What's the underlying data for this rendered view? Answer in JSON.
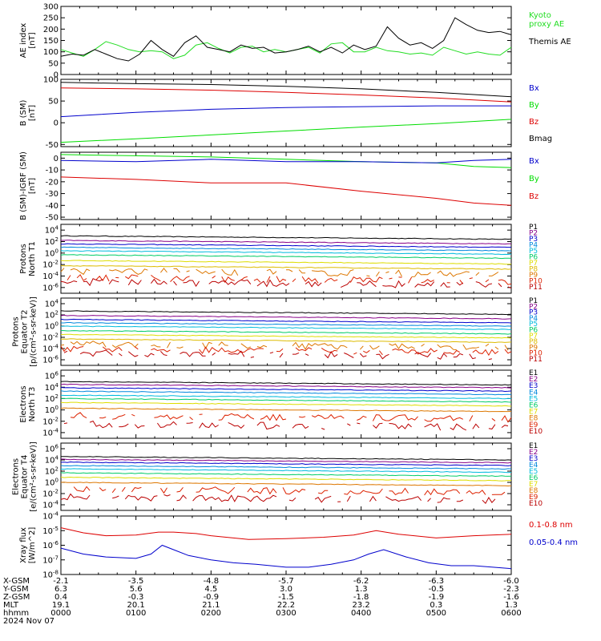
{
  "colors": {
    "black": "#000000",
    "red": "#dd0000",
    "green": "#00dd00",
    "blue": "#0000cc",
    "ae_kyoto": "#22dd22"
  },
  "chart_data": [
    {
      "type": "line",
      "panel": "AE index",
      "ylabel_lines": [
        "AE index",
        "[nT]"
      ],
      "yticks": [
        "300",
        "250",
        "200",
        "150",
        "100",
        "50",
        "0"
      ],
      "ylim": [
        0,
        300
      ],
      "legend": [
        {
          "name": "Kyoto\nproxy AE",
          "lines": [
            "Kyoto",
            "proxy AE"
          ],
          "color": "#22dd22"
        },
        {
          "name": "Themis AE",
          "lines": [
            "Themis AE"
          ],
          "color": "#000000"
        }
      ],
      "series": [
        {
          "name": "Kyoto proxy AE",
          "color": "#22dd22",
          "x": [
            0,
            0.15,
            0.3,
            0.45,
            0.6,
            0.75,
            0.9,
            1.05,
            1.2,
            1.35,
            1.5,
            1.65,
            1.8,
            1.95,
            2.1,
            2.25,
            2.4,
            2.55,
            2.7,
            2.85,
            3.0,
            3.15,
            3.3,
            3.45,
            3.6,
            3.75,
            3.9,
            4.05,
            4.2,
            4.35,
            4.5,
            4.65,
            4.8,
            4.95,
            5.1,
            5.25,
            5.4,
            5.55,
            5.7,
            5.85,
            6.0
          ],
          "y": [
            110,
            95,
            80,
            110,
            145,
            130,
            110,
            100,
            105,
            100,
            70,
            85,
            130,
            140,
            115,
            95,
            120,
            125,
            100,
            110,
            100,
            110,
            120,
            95,
            135,
            140,
            100,
            100,
            120,
            105,
            100,
            90,
            95,
            85,
            120,
            105,
            90,
            100,
            90,
            85,
            120
          ]
        },
        {
          "name": "Themis AE",
          "color": "#000000",
          "x": [
            0,
            0.15,
            0.3,
            0.45,
            0.6,
            0.75,
            0.9,
            1.05,
            1.2,
            1.35,
            1.5,
            1.65,
            1.8,
            1.95,
            2.1,
            2.25,
            2.4,
            2.55,
            2.7,
            2.85,
            3.0,
            3.15,
            3.3,
            3.45,
            3.6,
            3.75,
            3.9,
            4.05,
            4.2,
            4.35,
            4.5,
            4.65,
            4.8,
            4.95,
            5.1,
            5.25,
            5.4,
            5.55,
            5.7,
            5.85,
            6.0
          ],
          "y": [
            80,
            90,
            85,
            110,
            90,
            70,
            60,
            90,
            150,
            110,
            80,
            140,
            170,
            120,
            110,
            100,
            130,
            115,
            120,
            95,
            100,
            110,
            125,
            100,
            120,
            95,
            130,
            110,
            125,
            210,
            160,
            130,
            140,
            115,
            150,
            250,
            220,
            195,
            185,
            190,
            175
          ]
        }
      ]
    },
    {
      "type": "line",
      "panel": "B (SM)",
      "ylabel_lines": [
        "B (SM)",
        "[nT]"
      ],
      "yticks": [
        "100",
        "50",
        "0",
        "-50"
      ],
      "ylim": [
        -55,
        100
      ],
      "legend": [
        {
          "name": "Bx",
          "lines": [
            "Bx"
          ],
          "color": "#0000cc"
        },
        {
          "name": "By",
          "lines": [
            "By"
          ],
          "color": "#00dd00"
        },
        {
          "name": "Bz",
          "lines": [
            "Bz"
          ],
          "color": "#dd0000"
        },
        {
          "name": "Bmag",
          "lines": [
            "Bmag"
          ],
          "color": "#000000"
        }
      ],
      "series": [
        {
          "name": "Bmag",
          "color": "#000000",
          "x": [
            0,
            1,
            2,
            3,
            4,
            5,
            6
          ],
          "y": [
            93,
            90,
            88,
            84,
            78,
            70,
            60
          ]
        },
        {
          "name": "Bz",
          "color": "#dd0000",
          "x": [
            0,
            1,
            2,
            3,
            4,
            5,
            6
          ],
          "y": [
            80,
            78,
            75,
            70,
            64,
            57,
            48
          ]
        },
        {
          "name": "Bx",
          "color": "#0000cc",
          "x": [
            0,
            1,
            2,
            3,
            4,
            5,
            6
          ],
          "y": [
            14,
            24,
            31,
            35,
            37,
            39,
            39
          ]
        },
        {
          "name": "By",
          "color": "#00dd00",
          "x": [
            0,
            1,
            2,
            3,
            4,
            5,
            6
          ],
          "y": [
            -45,
            -37,
            -28,
            -19,
            -10,
            -2,
            8
          ]
        }
      ]
    },
    {
      "type": "line",
      "panel": "B (SM)-IGRF (SM)",
      "ylabel_lines": [
        "B (SM)-IGRF (SM)",
        "[nT]"
      ],
      "yticks": [
        "0",
        "-10",
        "-20",
        "-30",
        "-40",
        "-50"
      ],
      "ylim": [
        -52,
        5
      ],
      "legend": [
        {
          "name": "Bx",
          "lines": [
            "Bx"
          ],
          "color": "#0000cc"
        },
        {
          "name": "By",
          "lines": [
            "By"
          ],
          "color": "#00dd00"
        },
        {
          "name": "Bz",
          "lines": [
            "Bz"
          ],
          "color": "#dd0000"
        }
      ],
      "series": [
        {
          "name": "By",
          "color": "#00dd00",
          "x": [
            0,
            1,
            2,
            3,
            4,
            5,
            5.5,
            6
          ],
          "y": [
            3,
            2,
            1,
            -1,
            -3,
            -4,
            -7,
            -8
          ]
        },
        {
          "name": "Bx",
          "color": "#0000cc",
          "x": [
            0,
            1,
            2,
            3,
            4,
            5,
            5.5,
            6
          ],
          "y": [
            -2,
            -3,
            -1,
            -3,
            -3,
            -4,
            -2,
            -1
          ]
        },
        {
          "name": "Bz",
          "color": "#dd0000",
          "x": [
            0,
            1,
            2,
            3,
            4,
            5,
            5.5,
            6
          ],
          "y": [
            -16,
            -18,
            -21,
            -21,
            -28,
            -34,
            -38,
            -40
          ]
        }
      ]
    },
    {
      "type": "line",
      "panel": "Protons North T1",
      "ylabel_lines": [
        "Protons",
        "North T1"
      ],
      "log": true,
      "ytick_exps": [
        "4",
        "2",
        "0",
        "-2",
        "-4",
        "-6"
      ],
      "ylim_exp": [
        -7,
        5
      ],
      "legend": [
        {
          "name": "P1",
          "lines": [
            "P1"
          ],
          "color": "#000000"
        },
        {
          "name": "P2",
          "lines": [
            "P2"
          ],
          "color": "#880088"
        },
        {
          "name": "P3",
          "lines": [
            "P3"
          ],
          "color": "#0000cc"
        },
        {
          "name": "P4",
          "lines": [
            "P4"
          ],
          "color": "#0088dd"
        },
        {
          "name": "P5",
          "lines": [
            "P5"
          ],
          "color": "#00bbdd"
        },
        {
          "name": "P6",
          "lines": [
            "P6"
          ],
          "color": "#00cc66"
        },
        {
          "name": "P7",
          "lines": [
            "P7"
          ],
          "color": "#dddd00"
        },
        {
          "name": "P8",
          "lines": [
            "P8"
          ],
          "color": "#ddbb00"
        },
        {
          "name": "P9",
          "lines": [
            "P9"
          ],
          "color": "#dd7700"
        },
        {
          "name": "P10",
          "lines": [
            "P10"
          ],
          "color": "#dd2200"
        },
        {
          "name": "P11",
          "lines": [
            "P11"
          ],
          "color": "#bb0000"
        }
      ],
      "series_log10": [
        3.0,
        2.2,
        1.6,
        1.0,
        0.4,
        -0.3,
        -1.3,
        -2.2,
        -3.1,
        -4.3,
        -5.0
      ]
    },
    {
      "type": "line",
      "panel": "Protons Equator T2",
      "ylabel_lines": [
        "Protons",
        "Equator T2",
        "[p/(cm²-s-sr-keV)]"
      ],
      "log": true,
      "ytick_exps": [
        "4",
        "2",
        "0",
        "-2",
        "-4",
        "-6"
      ],
      "ylim_exp": [
        -7,
        5
      ],
      "legend": [
        {
          "name": "P1",
          "lines": [
            "P1"
          ],
          "color": "#000000"
        },
        {
          "name": "P2",
          "lines": [
            "P2"
          ],
          "color": "#880088"
        },
        {
          "name": "P3",
          "lines": [
            "P3"
          ],
          "color": "#0000cc"
        },
        {
          "name": "P4",
          "lines": [
            "P4"
          ],
          "color": "#0088dd"
        },
        {
          "name": "P5",
          "lines": [
            "P5"
          ],
          "color": "#00bbdd"
        },
        {
          "name": "P6",
          "lines": [
            "P6"
          ],
          "color": "#00cc66"
        },
        {
          "name": "P7",
          "lines": [
            "P7"
          ],
          "color": "#dddd00"
        },
        {
          "name": "P8",
          "lines": [
            "P8"
          ],
          "color": "#ddbb00"
        },
        {
          "name": "P9",
          "lines": [
            "P9"
          ],
          "color": "#dd7700"
        },
        {
          "name": "P10",
          "lines": [
            "P10"
          ],
          "color": "#dd2200"
        },
        {
          "name": "P11",
          "lines": [
            "P11"
          ],
          "color": "#bb0000"
        }
      ],
      "series_log10": [
        2.7,
        1.9,
        1.2,
        0.6,
        0.0,
        -0.8,
        -1.5,
        -2.3,
        -3.2,
        -4.1,
        -4.8
      ]
    },
    {
      "type": "line",
      "panel": "Electrons North T3",
      "ylabel_lines": [
        "Electrons",
        "North T3"
      ],
      "log": true,
      "ytick_exps": [
        "6",
        "4",
        "2",
        "0",
        "-2",
        "-4"
      ],
      "ylim_exp": [
        -5,
        7
      ],
      "legend": [
        {
          "name": "E1",
          "lines": [
            "E1"
          ],
          "color": "#000000"
        },
        {
          "name": "E2",
          "lines": [
            "E2"
          ],
          "color": "#880088"
        },
        {
          "name": "E3",
          "lines": [
            "E3"
          ],
          "color": "#0000cc"
        },
        {
          "name": "E4",
          "lines": [
            "E4"
          ],
          "color": "#0088dd"
        },
        {
          "name": "E5",
          "lines": [
            "E5"
          ],
          "color": "#00bbdd"
        },
        {
          "name": "E6",
          "lines": [
            "E6"
          ],
          "color": "#00cc66"
        },
        {
          "name": "E7",
          "lines": [
            "E7"
          ],
          "color": "#dddd00"
        },
        {
          "name": "E8",
          "lines": [
            "E8"
          ],
          "color": "#dd7700"
        },
        {
          "name": "E9",
          "lines": [
            "E9"
          ],
          "color": "#dd2200"
        },
        {
          "name": "E10",
          "lines": [
            "E10"
          ],
          "color": "#bb0000"
        }
      ],
      "series_log10": [
        5.0,
        4.5,
        3.9,
        3.3,
        2.6,
        2.0,
        1.3,
        0.3,
        -1.0,
        -2.5
      ]
    },
    {
      "type": "line",
      "panel": "Electrons Equator T4",
      "ylabel_lines": [
        "Electrons",
        "Equator T4",
        "[e/(cm²-s-sr-keV)]"
      ],
      "log": true,
      "ytick_exps": [
        "6",
        "4",
        "2",
        "0",
        "-2",
        "-4"
      ],
      "ylim_exp": [
        -5,
        7
      ],
      "legend": [
        {
          "name": "E1",
          "lines": [
            "E1"
          ],
          "color": "#000000"
        },
        {
          "name": "E2",
          "lines": [
            "E2"
          ],
          "color": "#880088"
        },
        {
          "name": "E3",
          "lines": [
            "E3"
          ],
          "color": "#0000cc"
        },
        {
          "name": "E4",
          "lines": [
            "E4"
          ],
          "color": "#0088dd"
        },
        {
          "name": "E5",
          "lines": [
            "E5"
          ],
          "color": "#00bbdd"
        },
        {
          "name": "E6",
          "lines": [
            "E6"
          ],
          "color": "#00cc66"
        },
        {
          "name": "E7",
          "lines": [
            "E7"
          ],
          "color": "#dddd00"
        },
        {
          "name": "E8",
          "lines": [
            "E8"
          ],
          "color": "#dd7700"
        },
        {
          "name": "E9",
          "lines": [
            "E9"
          ],
          "color": "#dd2200"
        },
        {
          "name": "E10",
          "lines": [
            "E10"
          ],
          "color": "#bb0000"
        }
      ],
      "series_log10": [
        4.6,
        4.1,
        3.6,
        3.0,
        2.4,
        1.7,
        0.9,
        0.0,
        -1.2,
        -2.6
      ]
    },
    {
      "type": "line",
      "panel": "Xray flux",
      "ylabel_lines": [
        "Xray flux",
        "[W/m^2]"
      ],
      "log": true,
      "ytick_exps": [
        "-4",
        "-5",
        "-6",
        "-7",
        "-8"
      ],
      "ylim_exp": [
        -8,
        -4
      ],
      "legend": [
        {
          "name": "0.1-0.8 nm",
          "lines": [
            "0.1-0.8 nm"
          ],
          "color": "#dd0000"
        },
        {
          "name": "0.05-0.4 nm",
          "lines": [
            "0.05-0.4 nm"
          ],
          "color": "#0000cc"
        }
      ],
      "series": [
        {
          "name": "0.1-0.8 nm",
          "color": "#dd0000",
          "x": [
            0,
            0.3,
            0.6,
            1.0,
            1.3,
            1.5,
            1.8,
            2.0,
            2.5,
            3.0,
            3.5,
            3.9,
            4.2,
            4.5,
            4.8,
            5.0,
            5.5,
            6.0
          ],
          "y": [
            -4.8,
            -5.15,
            -5.35,
            -5.3,
            -5.1,
            -5.1,
            -5.2,
            -5.35,
            -5.6,
            -5.55,
            -5.45,
            -5.3,
            -5.0,
            -5.25,
            -5.4,
            -5.5,
            -5.35,
            -5.25
          ]
        },
        {
          "name": "0.05-0.4 nm",
          "color": "#0000cc",
          "x": [
            0,
            0.3,
            0.6,
            1.0,
            1.2,
            1.35,
            1.5,
            1.7,
            2.0,
            2.3,
            2.6,
            3.0,
            3.3,
            3.6,
            3.9,
            4.1,
            4.3,
            4.6,
            4.9,
            5.2,
            5.5,
            6.0
          ],
          "y": [
            -6.2,
            -6.6,
            -6.8,
            -6.9,
            -6.6,
            -6.0,
            -6.3,
            -6.7,
            -7.0,
            -7.2,
            -7.3,
            -7.5,
            -7.5,
            -7.3,
            -7.0,
            -6.6,
            -6.3,
            -6.8,
            -7.2,
            -7.4,
            -7.4,
            -7.6
          ]
        }
      ]
    }
  ],
  "ephemeris": {
    "row_labels": [
      "X-GSM",
      "Y-GSM",
      "Z-GSM",
      "MLT",
      "hhmm",
      "2024 Nov 07"
    ],
    "columns": [
      {
        "x": "-2.1",
        "y": "6.3",
        "z": "0.4",
        "mlt": "19.1",
        "hhmm": "0000"
      },
      {
        "x": "-3.5",
        "y": "5.6",
        "z": "-0.3",
        "mlt": "20.1",
        "hhmm": "0100"
      },
      {
        "x": "-4.8",
        "y": "4.5",
        "z": "-0.9",
        "mlt": "21.1",
        "hhmm": "0200"
      },
      {
        "x": "-5.7",
        "y": "3.0",
        "z": "-1.5",
        "mlt": "22.2",
        "hhmm": "0300"
      },
      {
        "x": "-6.2",
        "y": "1.3",
        "z": "-1.8",
        "mlt": "23.2",
        "hhmm": "0400"
      },
      {
        "x": "-6.3",
        "y": "-0.5",
        "z": "-1.9",
        "mlt": "0.3",
        "hhmm": "0500"
      },
      {
        "x": "-6.0",
        "y": "-2.3",
        "z": "-1.6",
        "mlt": "1.3",
        "hhmm": "0600"
      }
    ]
  }
}
